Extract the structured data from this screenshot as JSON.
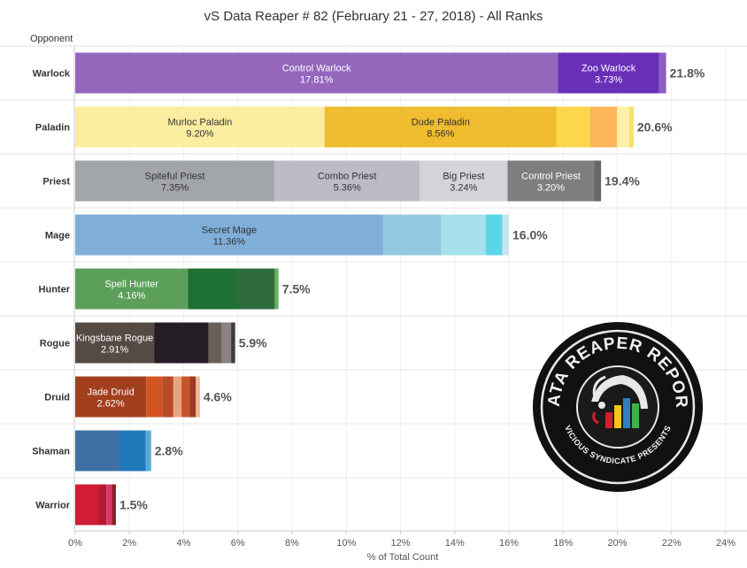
{
  "chart_data": {
    "type": "bar",
    "orientation": "horizontal",
    "stacked": true,
    "title": "vS Data Reaper # 82 (February 21 - 27, 2018) - All Ranks",
    "xlabel": "% of Total Count",
    "row_header": "Opponent",
    "xlim": [
      0,
      24
    ],
    "xticks": [
      "0%",
      "2%",
      "4%",
      "6%",
      "8%",
      "10%",
      "12%",
      "14%",
      "16%",
      "18%",
      "20%",
      "22%",
      "24%"
    ],
    "grid": true,
    "rows": [
      {
        "category": "Warlock",
        "total_label": "21.8%",
        "segments": [
          {
            "name": "Control Warlock",
            "value_label": "17.81%",
            "value": 17.81,
            "color": "#9467bd",
            "label_color": "#ffffff"
          },
          {
            "name": "Zoo Warlock",
            "value_label": "3.73%",
            "value": 3.73,
            "color": "#6a2fb8",
            "label_color": "#ffffff"
          },
          {
            "value": 0.26,
            "color": "#8c5fc0"
          }
        ]
      },
      {
        "category": "Paladin",
        "total_label": "20.6%",
        "segments": [
          {
            "name": "Murloc Paladin",
            "value_label": "9.20%",
            "value": 9.2,
            "color": "#fbeea0",
            "label_color": "#333333"
          },
          {
            "name": "Dude Paladin",
            "value_label": "8.56%",
            "value": 8.56,
            "color": "#eebc2e",
            "label_color": "#333333"
          },
          {
            "value": 1.23,
            "color": "#fcd74e"
          },
          {
            "value": 1.0,
            "color": "#fcb55a"
          },
          {
            "value": 0.45,
            "color": "#fdf0a8"
          },
          {
            "value": 0.16,
            "color": "#f6e16a"
          }
        ]
      },
      {
        "category": "Priest",
        "total_label": "19.4%",
        "segments": [
          {
            "name": "Spiteful Priest",
            "value_label": "7.35%",
            "value": 7.35,
            "color": "#a2a6a8",
            "label_color": "#333333"
          },
          {
            "name": "Combo Priest",
            "value_label": "5.36%",
            "value": 5.36,
            "color": "#bcbcc8",
            "label_color": "#333333"
          },
          {
            "name": "Big Priest",
            "value_label": "3.24%",
            "value": 3.24,
            "color": "#d3d3d8",
            "label_color": "#333333"
          },
          {
            "name": "Control Priest",
            "value_label": "3.20%",
            "value": 3.2,
            "color": "#7e7e7e",
            "label_color": "#ffffff"
          },
          {
            "value": 0.25,
            "color": "#666666"
          }
        ]
      },
      {
        "category": "Mage",
        "total_label": "16.0%",
        "segments": [
          {
            "name": "Secret Mage",
            "value_label": "11.36%",
            "value": 11.36,
            "color": "#7fafd9",
            "label_color": "#333333"
          },
          {
            "value": 2.14,
            "color": "#94c8de"
          },
          {
            "value": 1.64,
            "color": "#a5e0ec"
          },
          {
            "value": 0.62,
            "color": "#5ad6e8"
          },
          {
            "value": 0.24,
            "color": "#c9e3ee"
          }
        ]
      },
      {
        "category": "Hunter",
        "total_label": "7.5%",
        "segments": [
          {
            "name": "Spell Hunter",
            "value_label": "4.16%",
            "value": 4.16,
            "color": "#5c9f5a",
            "label_color": "#ffffff"
          },
          {
            "value": 1.8,
            "color": "#1e6f32"
          },
          {
            "value": 1.4,
            "color": "#2d6b3d"
          },
          {
            "value": 0.14,
            "color": "#63b160"
          }
        ]
      },
      {
        "category": "Rogue",
        "total_label": "5.9%",
        "segments": [
          {
            "name": "Kingsbane Rogue",
            "value_label": "2.91%",
            "value": 2.91,
            "color": "#564b44",
            "label_color": "#ffffff"
          },
          {
            "value": 2.01,
            "color": "#241d25"
          },
          {
            "value": 0.48,
            "color": "#6a5f58"
          },
          {
            "value": 0.35,
            "color": "#8a8280"
          },
          {
            "value": 0.15,
            "color": "#3e3a3c"
          }
        ]
      },
      {
        "category": "Druid",
        "total_label": "4.6%",
        "segments": [
          {
            "name": "Jade Druid",
            "value_label": "2.62%",
            "value": 2.62,
            "color": "#a23f1f",
            "label_color": "#ffffff"
          },
          {
            "value": 0.6,
            "color": "#d25423"
          },
          {
            "value": 0.4,
            "color": "#b84a2a"
          },
          {
            "value": 0.3,
            "color": "#e7a57f"
          },
          {
            "value": 0.3,
            "color": "#c8532a"
          },
          {
            "value": 0.23,
            "color": "#9e3a22"
          },
          {
            "value": 0.15,
            "color": "#f0b894"
          }
        ]
      },
      {
        "category": "Shaman",
        "total_label": "2.8%",
        "segments": [
          {
            "value": 1.65,
            "color": "#3f6fa3"
          },
          {
            "value": 0.95,
            "color": "#1f78b8"
          },
          {
            "value": 0.2,
            "color": "#5aaad8"
          }
        ]
      },
      {
        "category": "Warrior",
        "total_label": "1.5%",
        "segments": [
          {
            "value": 0.85,
            "color": "#d01c35"
          },
          {
            "value": 0.3,
            "color": "#b81932"
          },
          {
            "value": 0.2,
            "color": "#d63a6a"
          },
          {
            "value": 0.15,
            "color": "#8e1a28"
          }
        ]
      }
    ]
  },
  "logo": {
    "top_text": "DATA REAPER REPORT",
    "bottom_text": "VICIOUS SYNDICATE PRESENTS"
  }
}
